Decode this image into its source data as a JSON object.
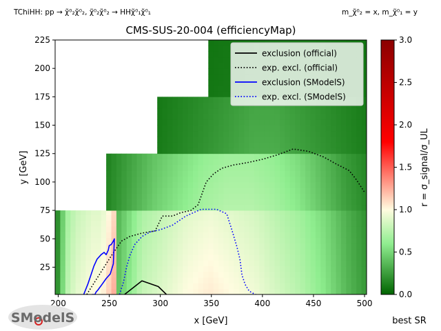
{
  "figure": {
    "topology_label": "TChiHH: pp → χ̃⁰₂χ̃⁰₂, χ̃⁰₂χ̃⁰₂ → HHχ̃⁰₁χ̃⁰₁",
    "mass_label": "m_χ̃⁰₂ = x, m_χ̃⁰₁ = y",
    "footer_label": "best SR",
    "logo_text": "SModelS"
  },
  "chart_data": {
    "type": "heatmap",
    "title": "CMS-SUS-20-004 (efficiencyMap)",
    "xlabel": "x [GeV]",
    "ylabel": "y [GeV]",
    "xlim": [
      197,
      502
    ],
    "ylim": [
      1,
      225
    ],
    "xticks": [
      200,
      250,
      300,
      350,
      400,
      450,
      500
    ],
    "yticks": [
      25,
      50,
      75,
      100,
      125,
      150,
      175,
      200,
      225
    ],
    "grid": false,
    "colorbar": {
      "label": "r = σ_signal/σ_UL",
      "range": [
        0.0,
        3.0
      ],
      "ticks": [
        0.0,
        0.5,
        1.0,
        1.5,
        2.0,
        2.5,
        3.0
      ],
      "colors": [
        "#006400",
        "#90ee90",
        "#fffce0",
        "#ff0000",
        "#8b0000"
      ]
    },
    "heatmap_regions": [
      {
        "x": [
          197,
          257
        ],
        "y": [
          1,
          75
        ],
        "r_profile": [
          0.2,
          0.7,
          0.85,
          0.9,
          0.95,
          0.95,
          1.1,
          1.3
        ]
      },
      {
        "x": [
          257,
          502
        ],
        "y": [
          1,
          75
        ],
        "r_profile": [
          0.4,
          0.75,
          0.85,
          0.95,
          1.0,
          0.95,
          0.9,
          0.8,
          0.7,
          0.55,
          0.35,
          0.2
        ]
      },
      {
        "x": [
          247,
          502
        ],
        "y": [
          75,
          125
        ],
        "r_profile": [
          0.15,
          0.3,
          0.45,
          0.55,
          0.65,
          0.7,
          0.7,
          0.65,
          0.55,
          0.4,
          0.25,
          0.15
        ]
      },
      {
        "x": [
          297,
          502
        ],
        "y": [
          125,
          175
        ],
        "r_profile": [
          0.1,
          0.15,
          0.2,
          0.25,
          0.3,
          0.3,
          0.25,
          0.2,
          0.15,
          0.1
        ]
      },
      {
        "x": [
          347,
          502
        ],
        "y": [
          175,
          225
        ],
        "r_profile": [
          0.08,
          0.1,
          0.12,
          0.12,
          0.1,
          0.08
        ]
      }
    ],
    "series": [
      {
        "name": "exclusion (official)",
        "color": "#000000",
        "style": "solid",
        "x": [
          265,
          282,
          298,
          306
        ],
        "y": [
          1,
          13,
          8,
          1
        ]
      },
      {
        "name": "exp. excl. (official)",
        "color": "#000000",
        "style": "dotted",
        "x": [
          228,
          240,
          252,
          262,
          270,
          282,
          295,
          302,
          312,
          320,
          330,
          337,
          345,
          352,
          360,
          372,
          385,
          400,
          415,
          430,
          445,
          460,
          472,
          485,
          492,
          500
        ],
        "y": [
          1,
          18,
          35,
          48,
          52,
          55,
          57,
          70,
          70,
          73,
          75,
          80,
          100,
          107,
          112,
          115,
          117,
          120,
          124,
          129,
          127,
          122,
          116,
          110,
          102,
          91
        ]
      },
      {
        "name": "exclusion (SModelS)",
        "color": "#0000ff",
        "style": "solid",
        "x": [
          225,
          229,
          232,
          235,
          238,
          242,
          245,
          247,
          249,
          250,
          252,
          254,
          255,
          254,
          251,
          247,
          243,
          239,
          237,
          236,
          233
        ],
        "y": [
          1,
          10,
          18,
          26,
          32,
          36,
          38,
          36,
          40,
          44,
          45,
          48,
          50,
          28,
          19,
          15,
          10,
          5,
          3,
          1,
          1
        ]
      },
      {
        "name": "exp. excl. (SModelS)",
        "color": "#0000ff",
        "style": "dotted",
        "x": [
          260,
          264,
          267,
          270,
          275,
          282,
          290,
          300,
          312,
          325,
          340,
          355,
          365,
          370,
          375,
          378,
          380,
          383,
          387,
          393,
          400
        ],
        "y": [
          1,
          12,
          25,
          35,
          45,
          52,
          56,
          58,
          62,
          70,
          76,
          76,
          72,
          58,
          43,
          32,
          18,
          10,
          4,
          1,
          0
        ]
      }
    ],
    "legend": {
      "position": "top-right",
      "entries": [
        "exclusion (official)",
        "exp. excl. (official)",
        "exclusion (SModelS)",
        "exp. excl. (SModelS)"
      ]
    }
  }
}
